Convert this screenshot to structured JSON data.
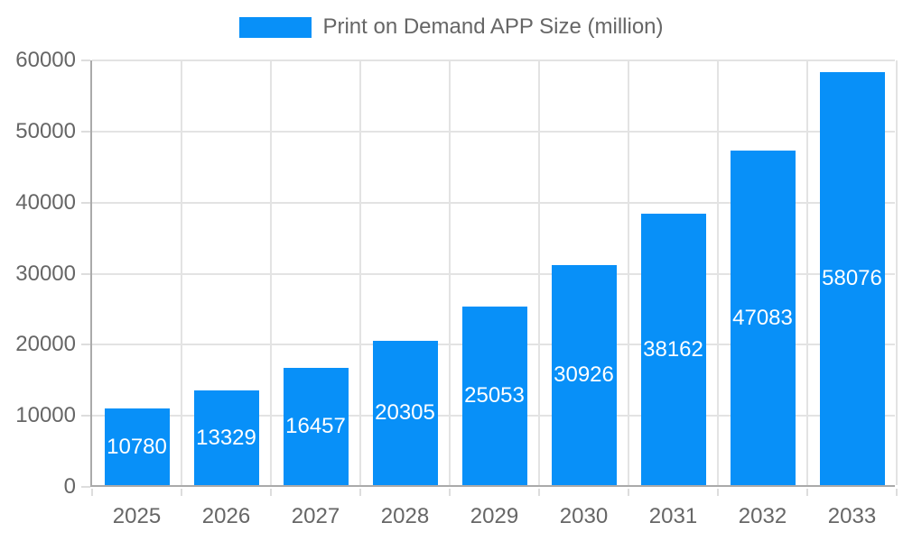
{
  "colors": {
    "bar": "#0890f8",
    "axis_line": "#aaaaaa",
    "gridline": "#e3e3e3",
    "tick_mark": "#dddddd",
    "axis_label": "#666666",
    "bar_value_label": "#ffffff",
    "background": "#ffffff"
  },
  "chart_data": {
    "type": "bar",
    "title": "Print on Demand APP Size (million)",
    "categories": [
      "2025",
      "2026",
      "2027",
      "2028",
      "2029",
      "2030",
      "2031",
      "2032",
      "2033"
    ],
    "values": [
      10780,
      13329,
      16457,
      20305,
      25053,
      30926,
      38162,
      47083,
      58076
    ],
    "xlabel": "",
    "ylabel": "",
    "ylim": [
      0,
      60000
    ],
    "yticks": [
      0,
      10000,
      20000,
      30000,
      40000,
      50000,
      60000
    ],
    "grid": true,
    "legend_position": "top",
    "value_labels": "inside-center"
  }
}
